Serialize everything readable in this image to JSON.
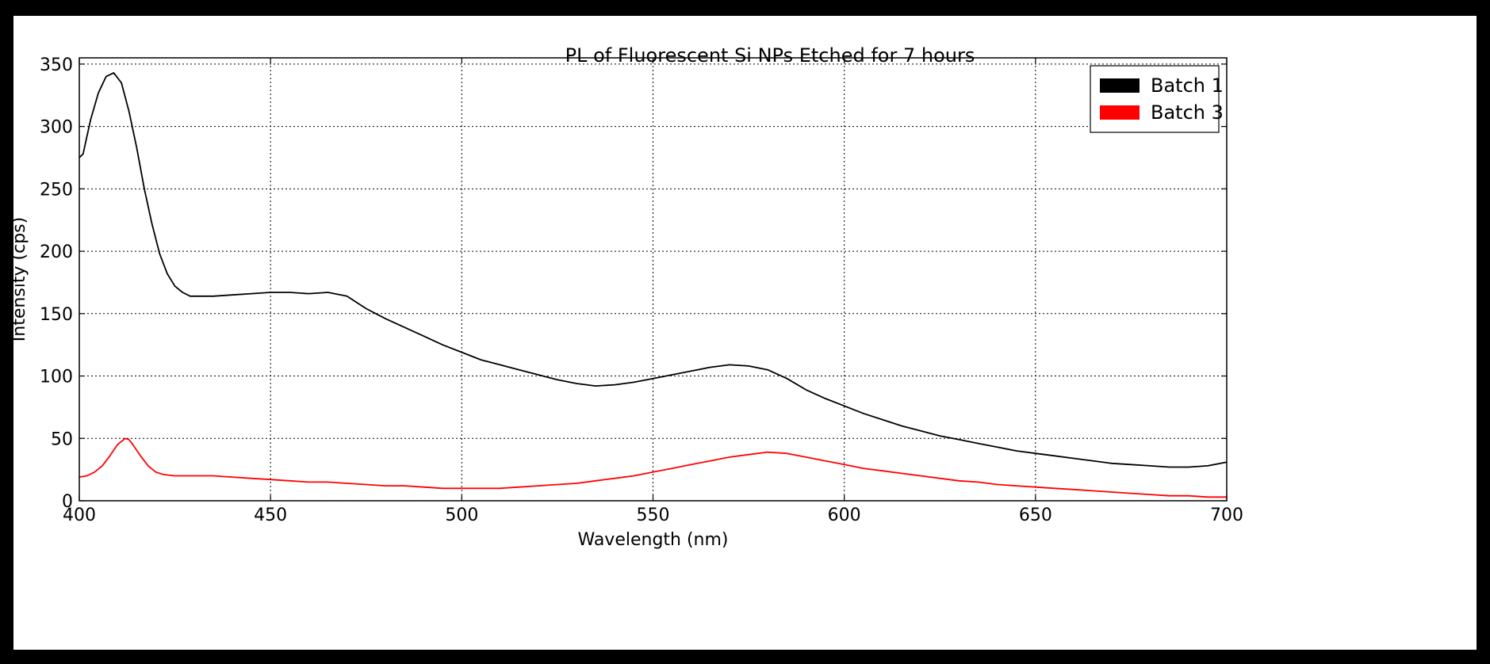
{
  "chart_data": {
    "type": "line",
    "title": "PL of Fluorescent Si NPs Etched for 7 hours",
    "xlabel": "Wavelength (nm)",
    "ylabel": "Intensity (cps)",
    "xlim": [
      400,
      700
    ],
    "ylim": [
      0,
      355
    ],
    "xticks": [
      400,
      450,
      500,
      550,
      600,
      650,
      700
    ],
    "yticks": [
      0,
      50,
      100,
      150,
      200,
      250,
      300,
      350
    ],
    "grid": true,
    "legend_position": "top-right",
    "series": [
      {
        "name": "Batch 1",
        "color": "#000000",
        "x": [
          400,
          401,
          402,
          403,
          405,
          407,
          409,
          411,
          413,
          415,
          417,
          419,
          421,
          423,
          425,
          427,
          429,
          431,
          435,
          440,
          445,
          450,
          455,
          460,
          465,
          470,
          475,
          480,
          485,
          490,
          495,
          500,
          505,
          510,
          515,
          520,
          525,
          530,
          535,
          540,
          545,
          550,
          555,
          560,
          565,
          570,
          575,
          580,
          585,
          590,
          595,
          600,
          605,
          610,
          615,
          620,
          625,
          630,
          635,
          640,
          645,
          650,
          655,
          660,
          665,
          670,
          675,
          680,
          685,
          690,
          695,
          700
        ],
        "values": [
          275,
          278,
          292,
          306,
          327,
          340,
          343,
          335,
          312,
          283,
          250,
          222,
          198,
          182,
          172,
          167,
          164,
          164,
          164,
          165,
          166,
          167,
          167,
          166,
          167,
          164,
          154,
          146,
          139,
          132,
          125,
          119,
          113,
          109,
          105,
          101,
          97,
          94,
          92,
          93,
          95,
          98,
          101,
          104,
          107,
          109,
          108,
          105,
          98,
          89,
          82,
          76,
          70,
          65,
          60,
          56,
          52,
          49,
          46,
          43,
          40,
          38,
          36,
          34,
          32,
          30,
          29,
          28,
          27,
          27,
          28,
          31
        ]
      },
      {
        "name": "Batch 3",
        "color": "#ff0000",
        "x": [
          400,
          402,
          404,
          406,
          408,
          410,
          412,
          413,
          414,
          416,
          418,
          420,
          422,
          425,
          430,
          435,
          440,
          445,
          450,
          455,
          460,
          465,
          470,
          475,
          480,
          485,
          490,
          495,
          500,
          505,
          510,
          515,
          520,
          525,
          530,
          535,
          540,
          545,
          550,
          555,
          560,
          565,
          570,
          575,
          580,
          585,
          590,
          595,
          600,
          605,
          610,
          615,
          620,
          625,
          630,
          635,
          640,
          645,
          650,
          655,
          660,
          665,
          670,
          675,
          680,
          685,
          690,
          695,
          700
        ],
        "values": [
          19,
          20,
          23,
          28,
          36,
          45,
          50,
          49,
          45,
          36,
          28,
          23,
          21,
          20,
          20,
          20,
          19,
          18,
          17,
          16,
          15,
          15,
          14,
          13,
          12,
          12,
          11,
          10,
          10,
          10,
          10,
          11,
          12,
          13,
          14,
          16,
          18,
          20,
          23,
          26,
          29,
          32,
          35,
          37,
          39,
          38,
          35,
          32,
          29,
          26,
          24,
          22,
          20,
          18,
          16,
          15,
          13,
          12,
          11,
          10,
          9,
          8,
          7,
          6,
          5,
          4,
          4,
          3,
          3
        ]
      }
    ]
  }
}
